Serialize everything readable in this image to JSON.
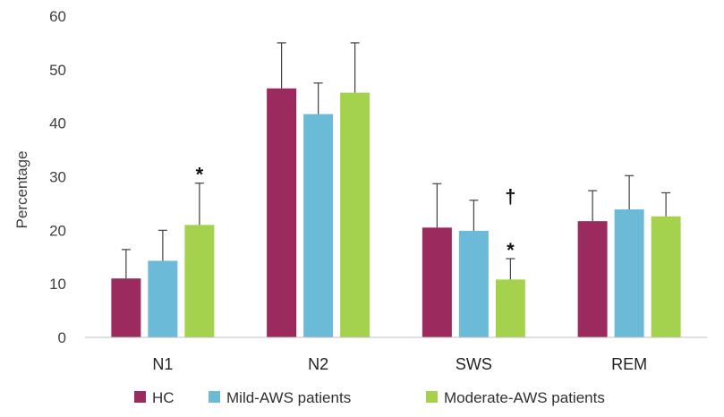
{
  "chart_data": {
    "type": "bar",
    "title": "",
    "xlabel": "",
    "ylabel": "Percentage",
    "ylim": [
      0,
      60
    ],
    "yticks": [
      0,
      10,
      20,
      30,
      40,
      50,
      60
    ],
    "grid": false,
    "legend_position": "bottom",
    "categories": [
      "N1",
      "N2",
      "SWS",
      "REM"
    ],
    "series": [
      {
        "name": "HC",
        "color": "#9B2A5E",
        "values": [
          11.0,
          46.5,
          20.5,
          21.7
        ],
        "errors": [
          5.4,
          8.5,
          8.2,
          5.7
        ]
      },
      {
        "name": "Mild-AWS patients",
        "color": "#6BBBD8",
        "values": [
          14.3,
          41.7,
          19.9,
          23.9
        ],
        "errors": [
          5.7,
          5.8,
          5.7,
          6.3
        ]
      },
      {
        "name": "Moderate-AWS patients",
        "color": "#A5D24D",
        "values": [
          21.0,
          45.7,
          10.8,
          22.6
        ],
        "errors": [
          7.8,
          9.3,
          3.9,
          4.4
        ]
      }
    ],
    "annotations": [
      {
        "category": "N1",
        "series": 2,
        "text": "*"
      },
      {
        "category": "SWS",
        "series": 2,
        "text": "*"
      },
      {
        "category": "SWS",
        "series": 2,
        "text": "†"
      }
    ]
  }
}
